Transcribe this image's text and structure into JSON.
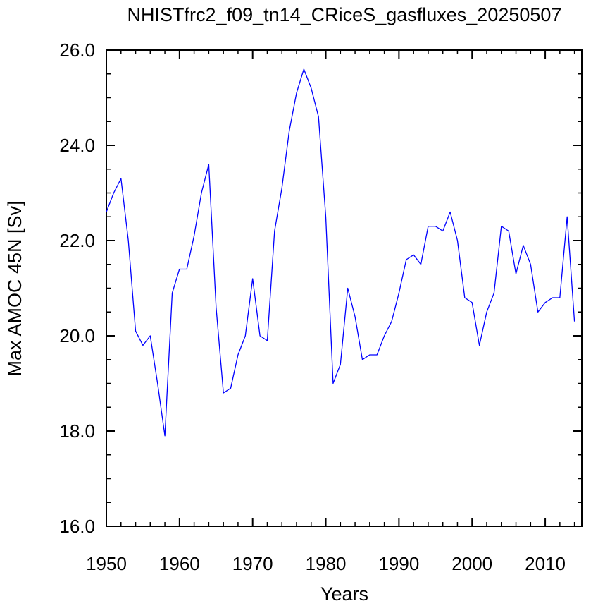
{
  "chart_data": {
    "type": "line",
    "title": "NHISTfrc2_f09_tn14_CRiceS_gasfluxes_20250507",
    "xlabel": "Years",
    "ylabel": "Max AMOC 45N [Sv]",
    "xlim": [
      1950,
      2015
    ],
    "ylim": [
      16.0,
      26.0
    ],
    "x_major_ticks": [
      1950,
      1960,
      1970,
      1980,
      1990,
      2000,
      2010
    ],
    "x_tick_labels": [
      "1950",
      "1960",
      "1970",
      "1980",
      "1990",
      "2000",
      "2010"
    ],
    "y_major_ticks": [
      16,
      18,
      20,
      22,
      24,
      26
    ],
    "y_tick_labels": [
      "16.0",
      "18.0",
      "20.0",
      "22.0",
      "24.0",
      "26.0"
    ],
    "grid": false,
    "line_color": "#0000ff",
    "series": [
      {
        "x": [
          1950,
          1951,
          1952,
          1953,
          1954,
          1955,
          1956,
          1957,
          1958,
          1959,
          1960,
          1961,
          1962,
          1963,
          1964,
          1965,
          1966,
          1967,
          1968,
          1969,
          1970,
          1971,
          1972,
          1973,
          1974,
          1975,
          1976,
          1977,
          1978,
          1979,
          1980,
          1981,
          1982,
          1983,
          1984,
          1985,
          1986,
          1987,
          1988,
          1989,
          1990,
          1991,
          1992,
          1993,
          1994,
          1995,
          1996,
          1997,
          1998,
          1999,
          2000,
          2001,
          2002,
          2003,
          2004,
          2005,
          2006,
          2007,
          2008,
          2009,
          2010,
          2011,
          2012,
          2013,
          2014
        ],
        "y": [
          22.6,
          23.0,
          23.3,
          22.0,
          20.1,
          19.8,
          20.0,
          19.0,
          17.9,
          20.9,
          21.4,
          21.4,
          22.1,
          23.0,
          23.6,
          20.6,
          18.8,
          18.9,
          19.6,
          20.0,
          21.2,
          20.0,
          19.9,
          22.2,
          23.1,
          24.3,
          25.1,
          25.6,
          25.2,
          24.6,
          22.5,
          19.0,
          19.4,
          21.0,
          20.4,
          19.5,
          19.6,
          19.6,
          20.0,
          20.3,
          20.9,
          21.6,
          21.7,
          21.5,
          22.3,
          22.3,
          22.2,
          22.6,
          22.0,
          20.8,
          20.7,
          19.8,
          20.5,
          20.9,
          22.3,
          22.2,
          21.3,
          21.9,
          21.5,
          20.5,
          20.7,
          20.8,
          20.8,
          22.5,
          20.3
        ]
      }
    ]
  }
}
